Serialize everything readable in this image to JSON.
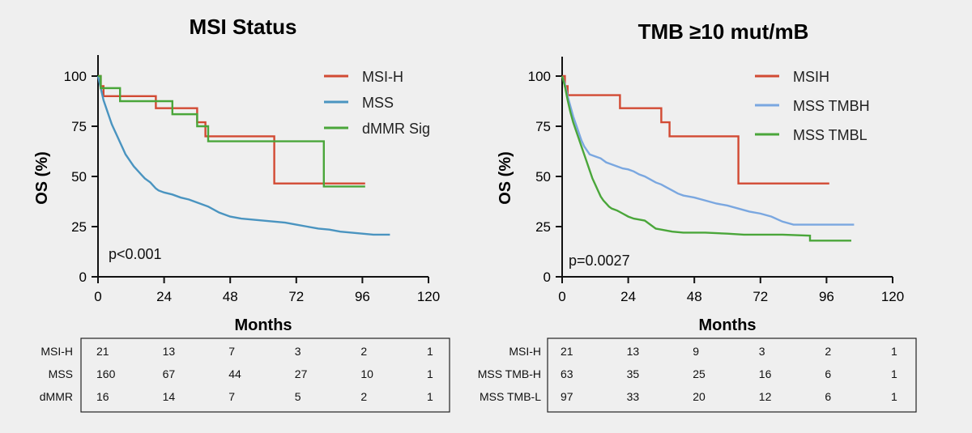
{
  "chart_data": [
    {
      "type": "line",
      "title": "MSI Status",
      "xlabel": "Months",
      "ylabel": "OS (%)",
      "xlim": [
        0,
        120
      ],
      "ylim": [
        0,
        100
      ],
      "xticks": [
        0,
        24,
        48,
        72,
        96,
        120
      ],
      "yticks": [
        0,
        25,
        50,
        75,
        100
      ],
      "annotation": "p<0.001",
      "legend_position": "top-right",
      "series": [
        {
          "name": "MSI-H",
          "color": "#d24a33",
          "step": true,
          "points": [
            [
              0,
              100
            ],
            [
              1,
              95
            ],
            [
              2,
              90
            ],
            [
              21,
              90
            ],
            [
              21,
              84
            ],
            [
              36,
              84
            ],
            [
              36,
              77
            ],
            [
              39,
              77
            ],
            [
              39,
              70
            ],
            [
              64,
              70
            ],
            [
              64,
              46.5
            ],
            [
              97,
              46.5
            ]
          ]
        },
        {
          "name": "MSS",
          "color": "#4a94c0",
          "step": false,
          "points": [
            [
              0,
              100
            ],
            [
              1,
              94
            ],
            [
              2,
              88
            ],
            [
              3,
              84
            ],
            [
              4,
              80
            ],
            [
              5,
              76
            ],
            [
              6,
              73
            ],
            [
              7,
              70
            ],
            [
              8,
              67
            ],
            [
              9,
              64
            ],
            [
              10,
              61
            ],
            [
              11,
              59
            ],
            [
              12,
              57
            ],
            [
              13,
              55
            ],
            [
              14,
              53.5
            ],
            [
              15,
              52
            ],
            [
              16,
              50.5
            ],
            [
              17,
              49
            ],
            [
              18,
              48
            ],
            [
              19,
              47
            ],
            [
              20,
              45.5
            ],
            [
              21,
              44
            ],
            [
              22,
              43
            ],
            [
              24,
              42
            ],
            [
              27,
              41
            ],
            [
              30,
              39.5
            ],
            [
              33,
              38.5
            ],
            [
              36,
              37
            ],
            [
              40,
              35
            ],
            [
              44,
              32
            ],
            [
              48,
              30
            ],
            [
              52,
              29
            ],
            [
              56,
              28.5
            ],
            [
              60,
              28
            ],
            [
              64,
              27.5
            ],
            [
              68,
              27
            ],
            [
              72,
              26
            ],
            [
              76,
              25
            ],
            [
              80,
              24
            ],
            [
              84,
              23.5
            ],
            [
              88,
              22.5
            ],
            [
              92,
              22
            ],
            [
              96,
              21.5
            ],
            [
              100,
              21
            ],
            [
              106,
              21
            ]
          ]
        },
        {
          "name": "dMMR Sig",
          "color": "#4aa63a",
          "step": true,
          "points": [
            [
              0,
              100
            ],
            [
              1,
              94
            ],
            [
              8,
              94
            ],
            [
              8,
              87.5
            ],
            [
              27,
              87.5
            ],
            [
              27,
              81
            ],
            [
              36,
              81
            ],
            [
              36,
              75
            ],
            [
              40,
              75
            ],
            [
              40,
              67.5
            ],
            [
              82,
              67.5
            ],
            [
              82,
              45
            ],
            [
              97,
              45
            ]
          ]
        }
      ]
    },
    {
      "type": "line",
      "title": "TMB ≥10 mut/mB",
      "xlabel": "Months",
      "ylabel": "OS (%)",
      "xlim": [
        0,
        120
      ],
      "ylim": [
        0,
        100
      ],
      "xticks": [
        0,
        24,
        48,
        72,
        96,
        120
      ],
      "yticks": [
        0,
        25,
        50,
        75,
        100
      ],
      "annotation": "p=0.0027",
      "legend_position": "top-right",
      "series": [
        {
          "name": "MSIH",
          "color": "#d24a33",
          "step": true,
          "points": [
            [
              0,
              100
            ],
            [
              1,
              95
            ],
            [
              2,
              90.5
            ],
            [
              21,
              90.5
            ],
            [
              21,
              84
            ],
            [
              36,
              84
            ],
            [
              36,
              77
            ],
            [
              39,
              77
            ],
            [
              39,
              70
            ],
            [
              64,
              70
            ],
            [
              64,
              46.5
            ],
            [
              97,
              46.5
            ]
          ]
        },
        {
          "name": "MSS TMBH",
          "color": "#7aa7e0",
          "step": false,
          "points": [
            [
              0,
              100
            ],
            [
              1,
              96
            ],
            [
              2,
              90
            ],
            [
              3,
              85
            ],
            [
              4,
              80
            ],
            [
              5,
              76
            ],
            [
              6,
              72
            ],
            [
              7,
              68
            ],
            [
              8,
              65
            ],
            [
              9,
              63
            ],
            [
              10,
              61
            ],
            [
              12,
              60
            ],
            [
              14,
              59
            ],
            [
              16,
              57
            ],
            [
              18,
              56
            ],
            [
              20,
              55
            ],
            [
              22,
              54
            ],
            [
              24,
              53.5
            ],
            [
              26,
              52.5
            ],
            [
              28,
              51
            ],
            [
              30,
              50
            ],
            [
              32,
              48.5
            ],
            [
              34,
              47
            ],
            [
              36,
              46
            ],
            [
              38,
              44.5
            ],
            [
              40,
              43
            ],
            [
              42,
              41.5
            ],
            [
              44,
              40.5
            ],
            [
              48,
              39.5
            ],
            [
              52,
              38
            ],
            [
              56,
              36.5
            ],
            [
              60,
              35.5
            ],
            [
              64,
              34
            ],
            [
              68,
              32.5
            ],
            [
              72,
              31.5
            ],
            [
              76,
              30
            ],
            [
              80,
              27.5
            ],
            [
              84,
              26
            ],
            [
              90,
              26
            ],
            [
              100,
              26
            ],
            [
              106,
              26
            ]
          ]
        },
        {
          "name": "MSS TMBL",
          "color": "#4aa63a",
          "step": false,
          "points": [
            [
              0,
              100
            ],
            [
              1,
              95
            ],
            [
              2,
              88
            ],
            [
              3,
              82
            ],
            [
              4,
              77
            ],
            [
              5,
              73
            ],
            [
              6,
              69
            ],
            [
              7,
              65
            ],
            [
              8,
              61
            ],
            [
              9,
              57
            ],
            [
              10,
              53
            ],
            [
              11,
              49
            ],
            [
              12,
              46
            ],
            [
              13,
              43
            ],
            [
              14,
              40
            ],
            [
              15,
              38
            ],
            [
              16,
              36.5
            ],
            [
              17,
              35
            ],
            [
              18,
              34
            ],
            [
              20,
              33
            ],
            [
              22,
              31.5
            ],
            [
              24,
              30
            ],
            [
              26,
              29
            ],
            [
              28,
              28.5
            ],
            [
              30,
              28
            ],
            [
              32,
              26
            ],
            [
              34,
              24
            ],
            [
              36,
              23.5
            ],
            [
              40,
              22.5
            ],
            [
              44,
              22
            ],
            [
              52,
              22
            ],
            [
              60,
              21.5
            ],
            [
              66,
              21
            ],
            [
              72,
              21
            ],
            [
              80,
              21
            ],
            [
              90,
              20.5
            ],
            [
              90,
              18
            ],
            [
              96,
              18
            ],
            [
              105,
              18
            ]
          ]
        }
      ]
    }
  ],
  "risk_tables": [
    {
      "rows": [
        {
          "label": "MSI-H",
          "values": [
            "21",
            "13",
            "7",
            "3",
            "2",
            "1"
          ]
        },
        {
          "label": "MSS",
          "values": [
            "160",
            "67",
            "44",
            "27",
            "10",
            "1"
          ]
        },
        {
          "label": "dMMR",
          "values": [
            "16",
            "14",
            "7",
            "5",
            "2",
            "1"
          ]
        }
      ]
    },
    {
      "rows": [
        {
          "label": "MSI-H",
          "values": [
            "21",
            "13",
            "9",
            "3",
            "2",
            "1"
          ]
        },
        {
          "label": "MSS TMB-H",
          "values": [
            "63",
            "35",
            "25",
            "16",
            "6",
            "1"
          ]
        },
        {
          "label": "MSS TMB-L",
          "values": [
            "97",
            "33",
            "20",
            "12",
            "6",
            "1"
          ]
        }
      ]
    }
  ]
}
